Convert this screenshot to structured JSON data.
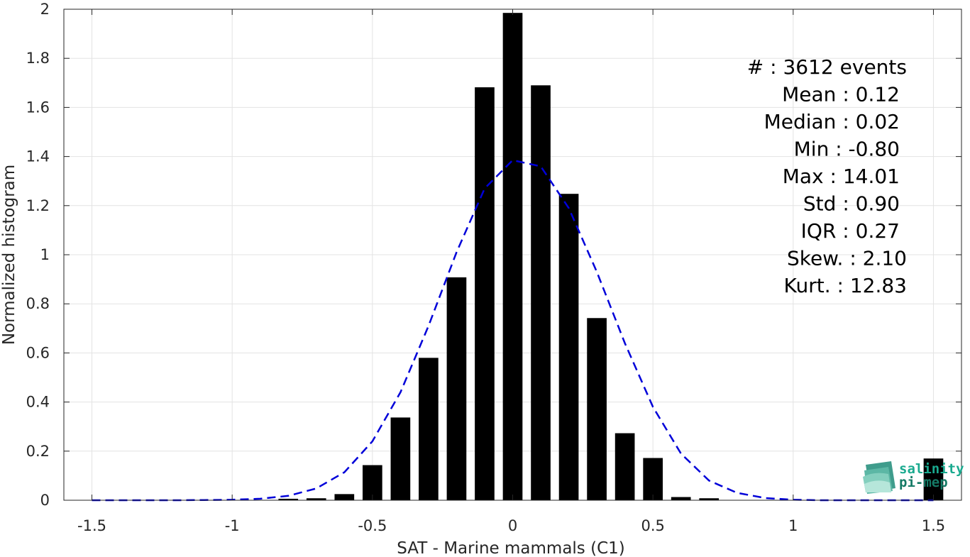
{
  "chart_data": {
    "type": "bar",
    "xlabel": "SAT - Marine mammals (C1)",
    "ylabel": "Normalized histogram",
    "xlim": [
      -1.6,
      1.6
    ],
    "ylim": [
      0,
      2
    ],
    "xticks": [
      -1.5,
      -1,
      -0.5,
      0,
      0.5,
      1,
      1.5
    ],
    "xtick_labels": [
      "-1.5",
      "-1",
      "-0.5",
      "0",
      "0.5",
      "1",
      "1.5"
    ],
    "yticks": [
      0,
      0.2,
      0.4,
      0.6,
      0.8,
      1,
      1.2,
      1.4,
      1.6,
      1.8,
      2
    ],
    "ytick_labels": [
      "0",
      "0.2",
      "0.4",
      "0.6",
      "0.8",
      "1",
      "1.2",
      "1.4",
      "1.6",
      "1.8",
      "2"
    ],
    "grid": true,
    "bar_width": 0.07,
    "bars": {
      "x": [
        -0.8,
        -0.7,
        -0.6,
        -0.5,
        -0.4,
        -0.3,
        -0.2,
        -0.1,
        0,
        0.1,
        0.2,
        0.3,
        0.4,
        0.5,
        0.6,
        0.7,
        1.5
      ],
      "y": [
        0.006,
        0.008,
        0.025,
        0.143,
        0.337,
        0.58,
        0.908,
        1.682,
        1.985,
        1.69,
        1.248,
        0.742,
        0.273,
        0.172,
        0.013,
        0.008,
        0.17
      ],
      "color": "#000000"
    },
    "fit_curve": {
      "style": "dashed",
      "color": "#0000d9",
      "x": [
        -1.5,
        -1.4,
        -1.3,
        -1.2,
        -1.1,
        -1.0,
        -0.9,
        -0.8,
        -0.7,
        -0.6,
        -0.5,
        -0.4,
        -0.3,
        -0.2,
        -0.1,
        0.0,
        0.1,
        0.2,
        0.3,
        0.4,
        0.5,
        0.6,
        0.7,
        0.8,
        0.9,
        1.0,
        1.1,
        1.2,
        1.3,
        1.4,
        1.5
      ],
      "y": [
        0.0,
        0.0,
        0.0,
        0.0,
        0.001,
        0.002,
        0.006,
        0.018,
        0.048,
        0.114,
        0.24,
        0.44,
        0.71,
        1.01,
        1.27,
        1.385,
        1.36,
        1.19,
        0.93,
        0.64,
        0.38,
        0.19,
        0.08,
        0.03,
        0.009,
        0.002,
        0.0,
        0.0,
        0.0,
        0.0,
        0.0
      ]
    },
    "stats": [
      "#  : 3612 events",
      "Mean : 0.12",
      "Median : 0.02",
      "Min : -0.80",
      "Max : 14.01",
      "Std : 0.90",
      "IQR : 0.27",
      "Skew. : 2.10",
      "Kurt. : 12.83"
    ]
  },
  "logo": {
    "line1": "salinity",
    "line2": "pi-mep",
    "color": "#1aaa8f"
  }
}
